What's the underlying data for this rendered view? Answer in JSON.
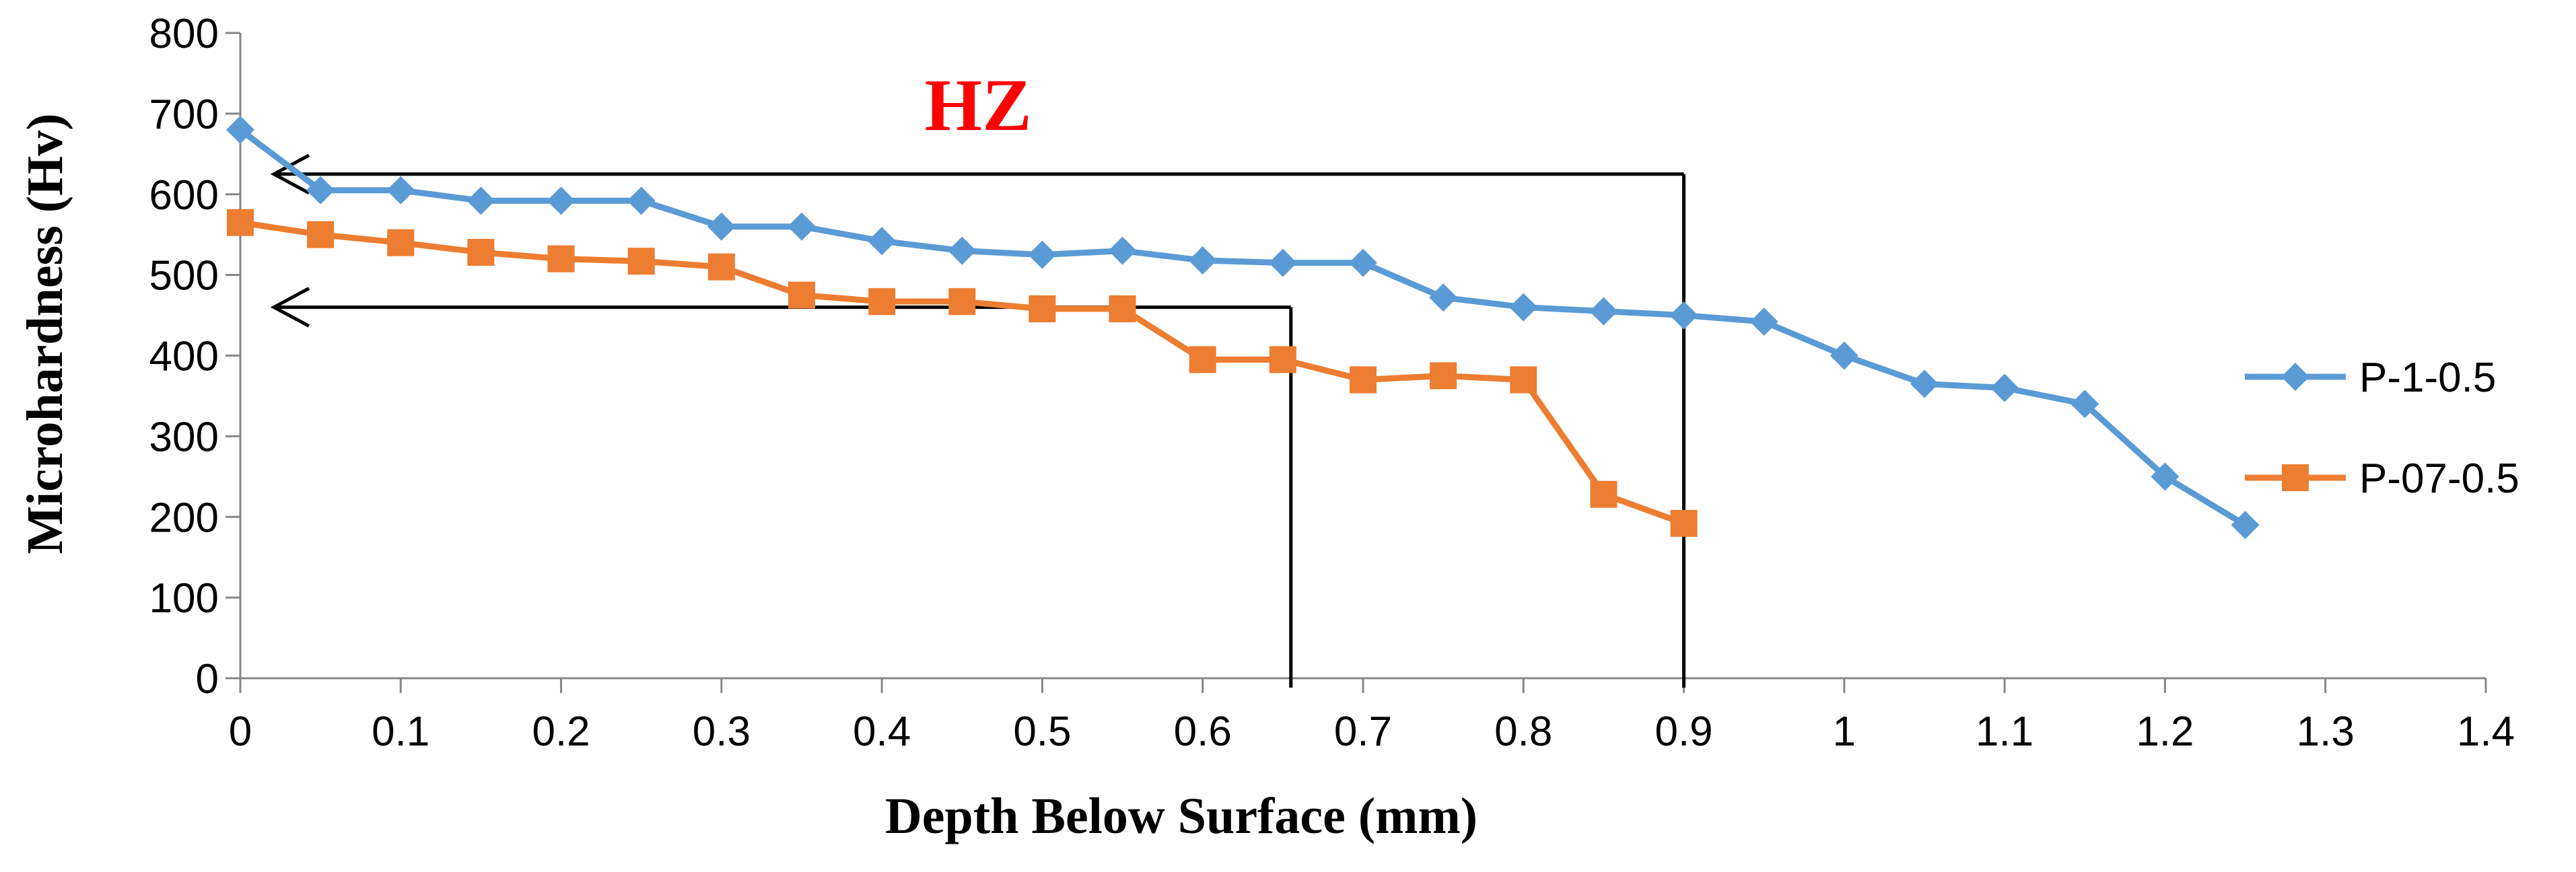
{
  "chart_data": {
    "type": "line",
    "title": "",
    "xlabel": "Depth Below Surface (mm)",
    "ylabel": "Microhardness (Hv)",
    "xlim": [
      0,
      1.4
    ],
    "ylim": [
      0,
      800
    ],
    "x_ticks": [
      0,
      0.1,
      0.2,
      0.3,
      0.4,
      0.5,
      0.6,
      0.7,
      0.8,
      0.9,
      1,
      1.1,
      1.2,
      1.3,
      1.4
    ],
    "y_ticks": [
      0,
      100,
      200,
      300,
      400,
      500,
      600,
      700,
      800
    ],
    "x_tick_labels": [
      "0",
      "0.1",
      "0.2",
      "0.3",
      "0.4",
      "0.5",
      "0.6",
      "0.7",
      "0.8",
      "0.9",
      "1",
      "1.1",
      "1.2",
      "1.3",
      "1.4"
    ],
    "y_tick_labels": [
      "0",
      "100",
      "200",
      "300",
      "400",
      "500",
      "600",
      "700",
      "800"
    ],
    "grid": false,
    "legend_position": "right",
    "series": [
      {
        "name": "P-1-0.5",
        "color": "#5B9BD5",
        "marker": "diamond",
        "x": [
          0,
          0.05,
          0.1,
          0.15,
          0.2,
          0.25,
          0.3,
          0.35,
          0.4,
          0.45,
          0.5,
          0.55,
          0.6,
          0.65,
          0.7,
          0.75,
          0.8,
          0.85,
          0.9,
          0.95,
          1.0,
          1.05,
          1.1,
          1.15,
          1.2,
          1.25
        ],
        "values": [
          680,
          605,
          605,
          592,
          592,
          592,
          560,
          560,
          542,
          530,
          525,
          530,
          518,
          515,
          515,
          472,
          460,
          455,
          450,
          442,
          400,
          365,
          360,
          340,
          250,
          190
        ]
      },
      {
        "name": "P-07-0.5",
        "color": "#ED7D31",
        "marker": "square",
        "x": [
          0,
          0.05,
          0.1,
          0.15,
          0.2,
          0.25,
          0.3,
          0.35,
          0.4,
          0.45,
          0.5,
          0.55,
          0.6,
          0.65,
          0.7,
          0.75,
          0.8,
          0.85,
          0.9
        ],
        "values": [
          565,
          550,
          540,
          528,
          520,
          517,
          510,
          475,
          467,
          467,
          458,
          458,
          395,
          395,
          370,
          375,
          370,
          228,
          192
        ]
      }
    ],
    "annotations": {
      "label": "HZ",
      "label_color": "#FF0000",
      "label_position": {
        "x": 0.46,
        "y": 680
      },
      "boundaries": [
        {
          "depth": 0.9,
          "hardness": 625
        },
        {
          "depth": 0.655,
          "hardness": 460
        }
      ]
    }
  }
}
